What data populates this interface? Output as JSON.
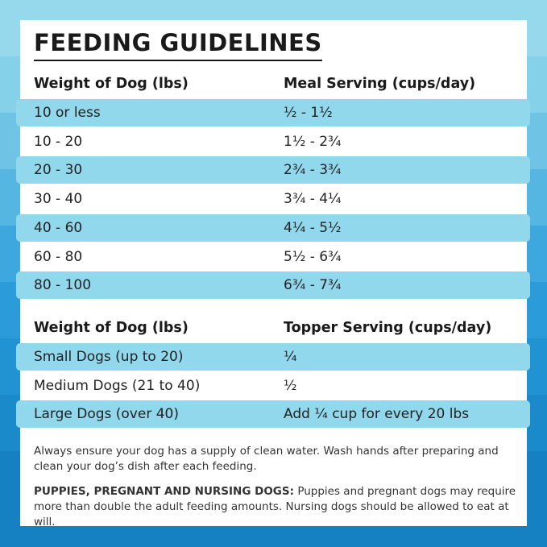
{
  "title": "FEEDING GUIDELINES",
  "meal_table": {
    "header": [
      "Weight of Dog (lbs)",
      "Meal Serving (cups/day)"
    ],
    "rows": [
      [
        "10 or less",
        "½ - 1½"
      ],
      [
        "10 - 20",
        "1½ - 2¾"
      ],
      [
        "20 - 30",
        "2¾ - 3¾"
      ],
      [
        "30 - 40",
        "3¾ - 4¼"
      ],
      [
        "40 - 60",
        "4¼ - 5½"
      ],
      [
        "60 - 80",
        "5½ - 6¾"
      ],
      [
        "80 - 100",
        "6¾ - 7¾"
      ]
    ]
  },
  "topper_table": {
    "header": [
      "Weight of Dog (lbs)",
      "Topper Serving (cups/day)"
    ],
    "rows": [
      [
        "Small Dogs (up to 20)",
        "¼"
      ],
      [
        "Medium Dogs (21 to 40)",
        "½"
      ],
      [
        "Large Dogs (over 40)",
        "Add ¼ cup for every 20 lbs"
      ]
    ]
  },
  "notes": {
    "water": "Always ensure your dog has a supply of clean water. Wash hands after preparing and clean your dog’s dish after each feeding.",
    "puppies_label": "PUPPIES, PREGNANT AND NURSING DOGS:",
    "puppies_text": "Puppies and pregnant dogs may require more than double the adult feeding amounts. Nursing dogs should be allowed to eat at will."
  }
}
